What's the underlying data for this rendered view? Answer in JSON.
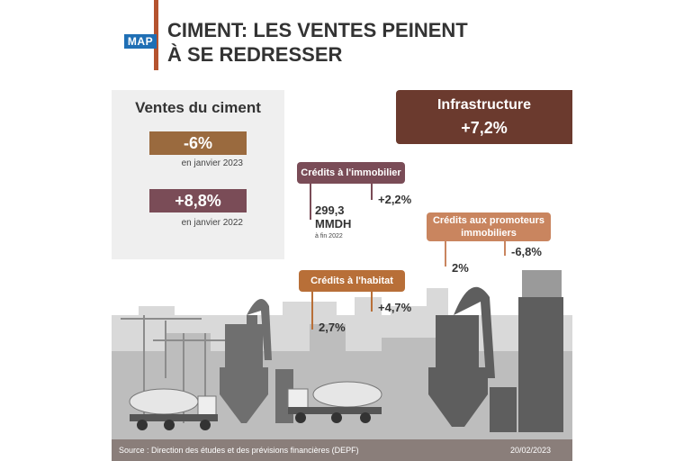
{
  "logo": "MAP",
  "title": {
    "line1": "CIMENT: LES VENTES PEINENT",
    "line2": "À SE REDRESSER"
  },
  "sales": {
    "heading": "Ventes du ciment",
    "items": [
      {
        "value": "-6%",
        "label": "en janvier 2023"
      },
      {
        "value": "+8,8%",
        "label": "en janvier 2022"
      }
    ]
  },
  "infrastructure": {
    "label": "Infrastructure",
    "value": "+7,2%"
  },
  "credits_immobilier": {
    "label": "Crédits à l'immobilier",
    "change": "+2,2%",
    "amount": "299,3",
    "unit": "MMDH",
    "note": "à fin 2022"
  },
  "credits_promoteurs": {
    "label_line1": "Crédits aux promoteurs",
    "label_line2": "immobiliers",
    "value_a": "2%",
    "value_b": "-6,8%"
  },
  "credits_habitat": {
    "label": "Crédits à l'habitat",
    "value_a": "2,7%",
    "value_b": "+4,7%"
  },
  "footer": {
    "source": "Source : Direction des études et des prévisions financières (DEPF)",
    "date": "20/02/2023"
  },
  "colors": {
    "accent": "#b5532f",
    "infra": "#6b3a2e",
    "immo": "#7a4c57",
    "promo": "#c9855f",
    "habitat": "#b86f38",
    "logo": "#1f6fb5"
  }
}
